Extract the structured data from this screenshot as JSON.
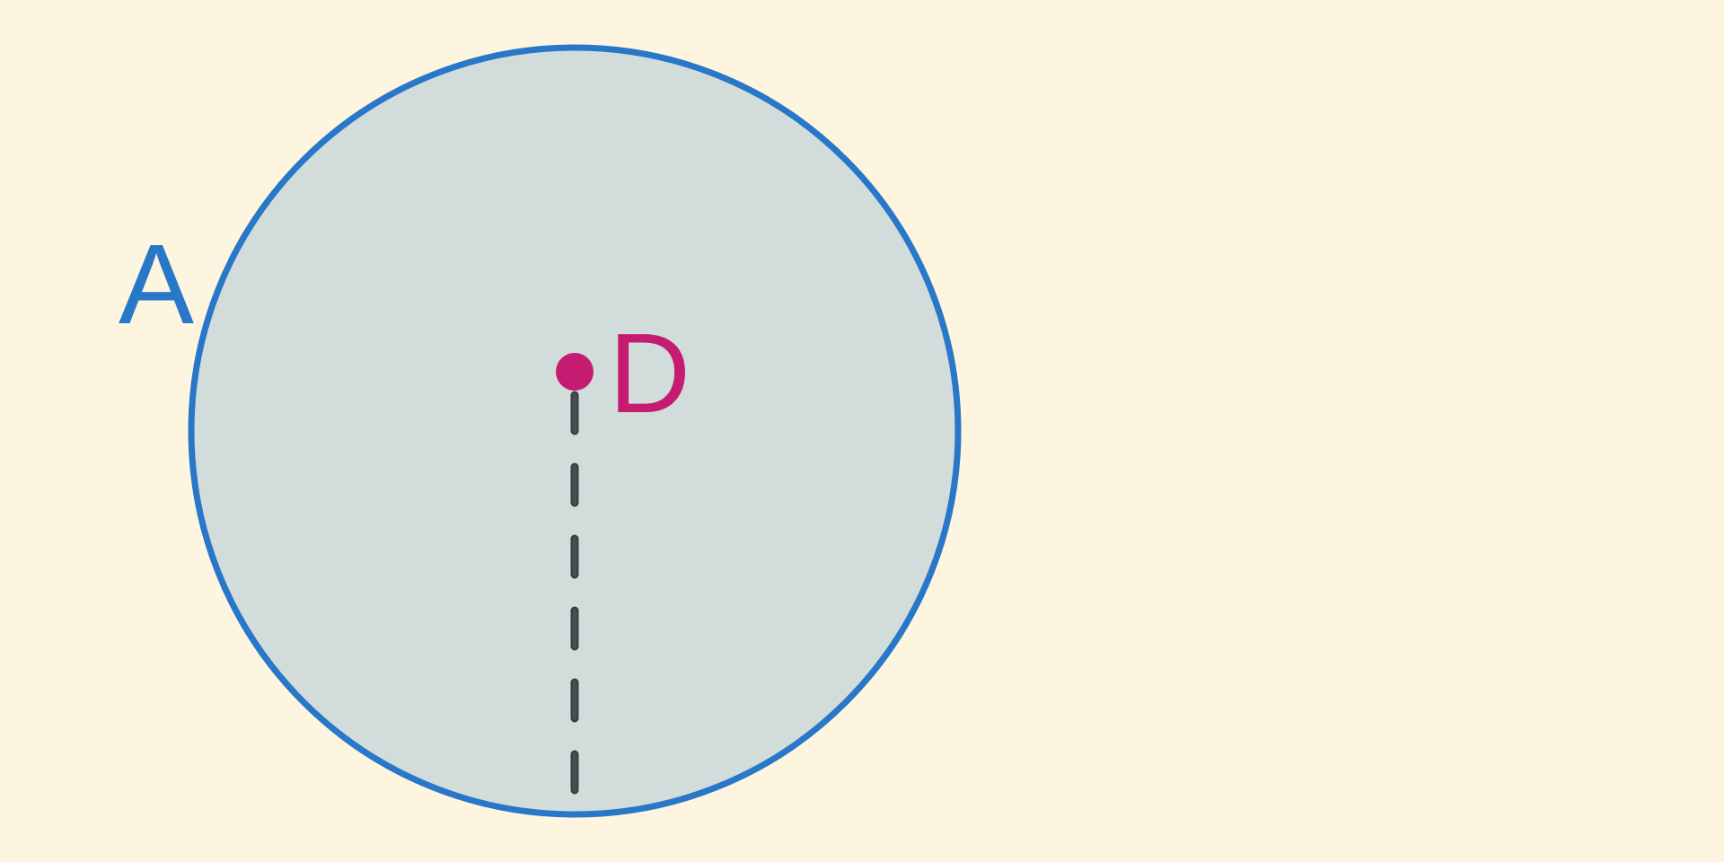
{
  "diagram": {
    "circle_label": "A",
    "point_label": "D",
    "colors": {
      "background": "#fdf5df",
      "circle_fill": "#d2dcda",
      "circle_stroke": "#2877c8",
      "point": "#c51b70",
      "dashed_line": "#3a3d40"
    }
  }
}
